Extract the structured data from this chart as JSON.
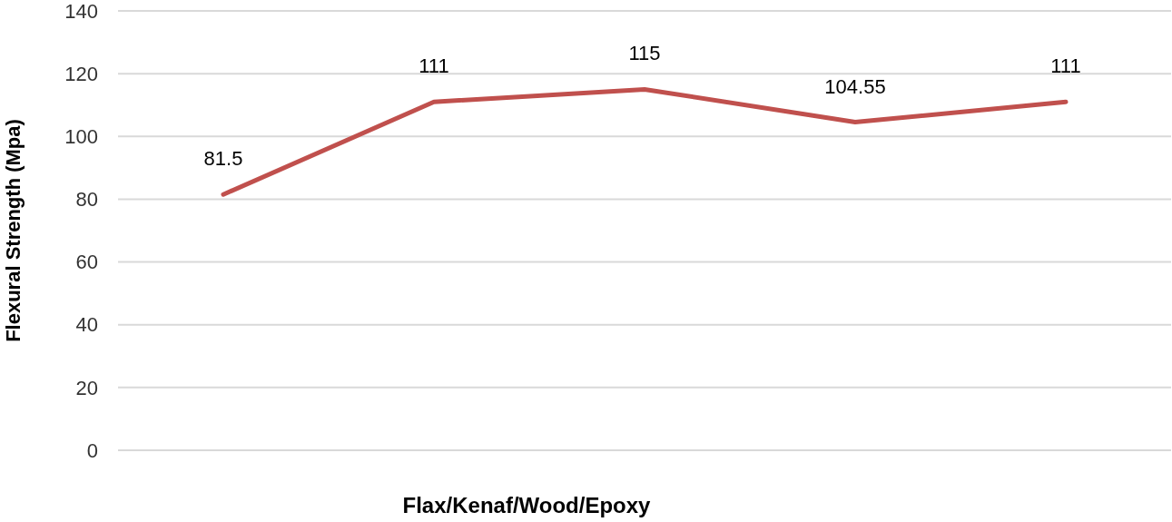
{
  "chart_data": {
    "type": "line",
    "xlabel": "Flax/Kenaf/Wood/Epoxy",
    "ylabel": "Flexural Strength (Mpa)",
    "categories": [
      null,
      null,
      null,
      null,
      null
    ],
    "series": [
      {
        "color": "#c0504d",
        "values": [
          81.5,
          111,
          115,
          104.55,
          111
        ]
      }
    ],
    "ylim": [
      0,
      140
    ],
    "yticks": [
      0,
      20,
      40,
      60,
      80,
      100,
      120,
      140
    ],
    "grid": "y",
    "data_labels": true,
    "marker": "none",
    "line_style": "solid"
  }
}
